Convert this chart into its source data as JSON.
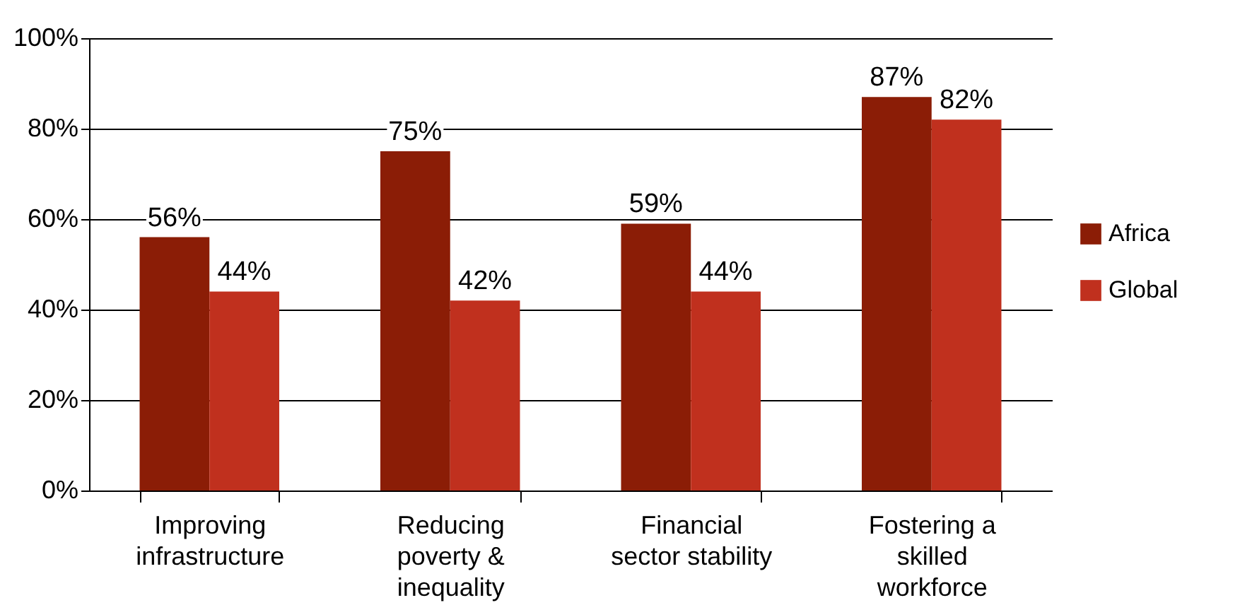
{
  "chart_data": {
    "type": "bar",
    "categories": [
      "Improving infrastructure",
      "Reducing poverty & inequality",
      "Financial sector stability",
      "Fostering a skilled workforce"
    ],
    "series": [
      {
        "name": "Africa",
        "color": "#8b1d06",
        "values": [
          56,
          75,
          59,
          87
        ]
      },
      {
        "name": "Global",
        "color": "#c0301e",
        "values": [
          44,
          42,
          44,
          82
        ]
      }
    ],
    "ylim": [
      0,
      100
    ],
    "yticks": [
      {
        "value": 0,
        "label": "0%"
      },
      {
        "value": 20,
        "label": "20%"
      },
      {
        "value": 40,
        "label": "40%"
      },
      {
        "value": 60,
        "label": "60%"
      },
      {
        "value": 80,
        "label": "80%"
      },
      {
        "value": 100,
        "label": "100%"
      }
    ],
    "value_labels": [
      [
        "56%",
        "75%",
        "59%",
        "87%"
      ],
      [
        "44%",
        "42%",
        "44%",
        "82%"
      ]
    ],
    "grid": "y",
    "legend": "right"
  }
}
